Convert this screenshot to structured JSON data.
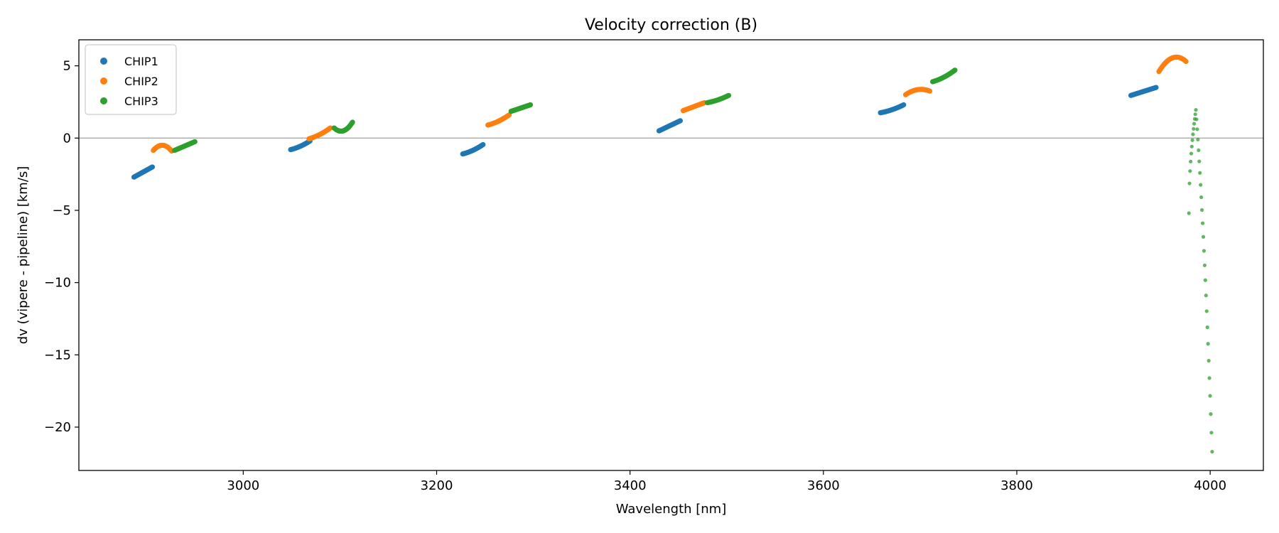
{
  "chart_data": {
    "type": "scatter",
    "title": "Velocity correction (B)",
    "xlabel": "Wavelength [nm]",
    "ylabel": "dv (vipere - pipeline) [km/s]",
    "xlim": [
      2830,
      4055
    ],
    "ylim": [
      -23,
      6.8
    ],
    "xticks": [
      3000,
      3200,
      3400,
      3600,
      3800,
      4000
    ],
    "xtick_labels": [
      "3000",
      "3200",
      "3400",
      "3600",
      "3800",
      "4000"
    ],
    "yticks": [
      5,
      0,
      -5,
      -10,
      -15,
      -20
    ],
    "ytick_labels": [
      "5",
      "0",
      "−5",
      "−10",
      "−15",
      "−20"
    ],
    "reference_line_y": 0,
    "legend_position": "upper-left",
    "series": [
      {
        "name": "CHIP1",
        "color": "#1f77b4",
        "segments": [
          {
            "x0": 2887,
            "x1": 2906,
            "shape": "line",
            "y0": -2.7,
            "y1": -2.0
          },
          {
            "x0": 3049,
            "x1": 3069,
            "shape": "curve",
            "y0": -0.8,
            "y1": -0.2
          },
          {
            "x0": 3227,
            "x1": 3248,
            "shape": "curve",
            "y0": -1.1,
            "y1": -0.45
          },
          {
            "x0": 3430,
            "x1": 3452,
            "shape": "line",
            "y0": 0.5,
            "y1": 1.2
          },
          {
            "x0": 3659,
            "x1": 3683,
            "shape": "curve",
            "y0": 1.75,
            "y1": 2.3
          },
          {
            "x0": 3918,
            "x1": 3944,
            "shape": "line",
            "y0": 2.95,
            "y1": 3.5
          }
        ]
      },
      {
        "name": "CHIP2",
        "color": "#ff7f0e",
        "segments": [
          {
            "x0": 2907,
            "x1": 2926,
            "shape": "arch",
            "y0": -0.85,
            "y1": -0.9,
            "peak": -0.5
          },
          {
            "x0": 3068,
            "x1": 3090,
            "shape": "curve",
            "y0": -0.05,
            "y1": 0.7
          },
          {
            "x0": 3253,
            "x1": 3275,
            "shape": "curve",
            "y0": 0.9,
            "y1": 1.6
          },
          {
            "x0": 3455,
            "x1": 3477,
            "shape": "line",
            "y0": 1.9,
            "y1": 2.45
          },
          {
            "x0": 3685,
            "x1": 3710,
            "shape": "arch",
            "y0": 3.0,
            "y1": 3.25,
            "peak": 3.35
          },
          {
            "x0": 3947,
            "x1": 3975,
            "shape": "arch",
            "y0": 4.6,
            "y1": 5.3,
            "peak": 5.55
          }
        ]
      },
      {
        "name": "CHIP3",
        "color": "#2ca02c",
        "segments": [
          {
            "x0": 2929,
            "x1": 2950,
            "shape": "line",
            "y0": -0.85,
            "y1": -0.25
          },
          {
            "x0": 3094,
            "x1": 3113,
            "shape": "dip",
            "y0": 0.7,
            "y1": 1.1,
            "peak": 0.5
          },
          {
            "x0": 3277,
            "x1": 3297,
            "shape": "line",
            "y0": 1.85,
            "y1": 2.3
          },
          {
            "x0": 3480,
            "x1": 3502,
            "shape": "curve",
            "y0": 2.45,
            "y1": 2.95
          },
          {
            "x0": 3713,
            "x1": 3736,
            "shape": "curve",
            "y0": 3.9,
            "y1": 4.7
          },
          {
            "x0": 3978,
            "x1": 4002,
            "shape": "spike",
            "y0": -5.2,
            "y1": -21.7,
            "peak": 1.95
          }
        ]
      }
    ]
  }
}
